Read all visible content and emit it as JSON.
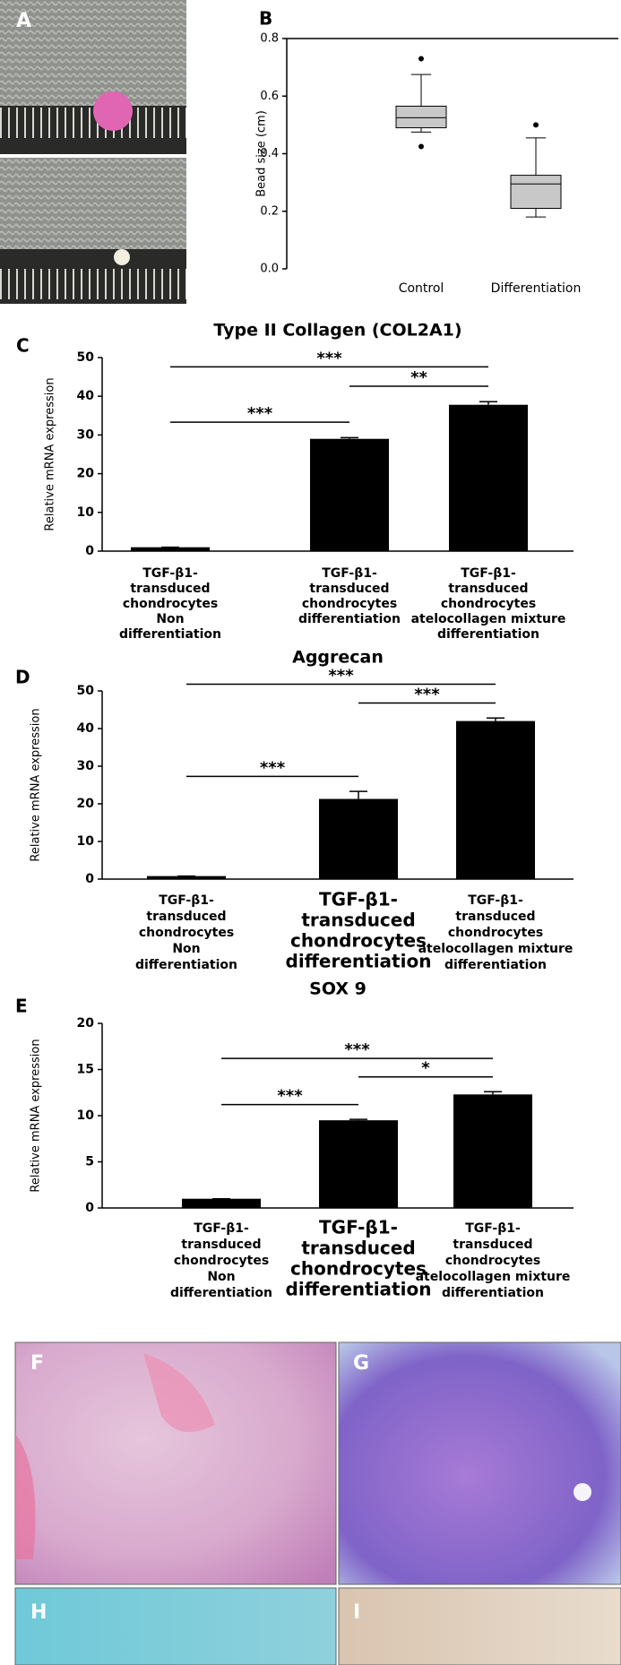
{
  "chart_data": [
    {
      "type": "box",
      "label": "B",
      "ylabel": "Bead size (cm)",
      "categories": [
        "Control",
        "Differentiation"
      ],
      "boxes": [
        {
          "min": 0.475,
          "q1": 0.49,
          "median": 0.525,
          "q3": 0.565,
          "max": 0.675,
          "outliers": [
            0.73,
            0.425
          ]
        },
        {
          "min": 0.18,
          "q1": 0.21,
          "median": 0.295,
          "q3": 0.325,
          "max": 0.455,
          "outliers": [
            0.5
          ]
        }
      ],
      "color": "#c8c8c8",
      "ylim": [
        0,
        0.8
      ],
      "yticks": [
        {
          "value": 0,
          "label": "0.0"
        },
        0.2,
        0.4,
        0.6,
        0.8
      ]
    },
    {
      "type": "bar",
      "label": "C",
      "title": "Type II Collagen (COL2A1)",
      "ylabel": "Relative mRNA expression",
      "categories": [
        [
          "TGF-β1-",
          "transduced",
          "chondrocytes",
          "Non",
          "differentiation"
        ],
        [
          "TGF-β1-",
          "transduced",
          "chondrocytes",
          "differentiation"
        ],
        [
          "TGF-β1-",
          "transduced",
          "chondrocytes",
          "atelocollagen mixture",
          "differentiation"
        ]
      ],
      "values": [
        1,
        29,
        37.8
      ],
      "errors": [
        0,
        0.3,
        0.8
      ],
      "color": "#000000",
      "comparisons": [
        {
          "pair": [
            0,
            2
          ],
          "label": "***"
        },
        {
          "pair": [
            1,
            2
          ],
          "label": "**"
        },
        {
          "pair": [
            0,
            1
          ],
          "label": "***"
        }
      ],
      "ylim": [
        0,
        50
      ],
      "yticks": [
        0,
        10,
        20,
        30,
        40,
        50
      ]
    },
    {
      "type": "bar",
      "label": "D",
      "title": "Aggrecan",
      "ylabel": "Relative mRNA expression",
      "categories": [
        [
          "TGF-β1-",
          "transduced",
          "chondrocytes",
          "Non",
          "differentiation"
        ],
        [
          "TGF-β1-",
          "transduced",
          "chondrocytes",
          "differentiation"
        ],
        [
          "TGF-β1-",
          "transduced",
          "chondrocytes",
          "atelocollagen mixture",
          "differentiation"
        ]
      ],
      "values": [
        0.8,
        21.3,
        42
      ],
      "errors": [
        0,
        2,
        0.8
      ],
      "color": "#000000",
      "comparisons": [
        {
          "pair": [
            0,
            2
          ],
          "label": "***"
        },
        {
          "pair": [
            1,
            2
          ],
          "label": "***"
        },
        {
          "pair": [
            0,
            1
          ],
          "label": "***"
        }
      ],
      "ylim": [
        0,
        50
      ],
      "yticks": [
        0,
        10,
        20,
        30,
        40,
        50
      ]
    },
    {
      "type": "bar",
      "label": "E",
      "title": "SOX 9",
      "ylabel": "Relative mRNA expression",
      "categories": [
        [
          "TGF-β1-",
          "transduced",
          "chondrocytes",
          "Non",
          "differentiation"
        ],
        [
          "TGF-β1-",
          "transduced",
          "chondrocytes",
          "differentiation"
        ],
        [
          "TGF-β1-",
          "transduced",
          "chondrocytes",
          "atelocollagen mixture",
          "differentiation"
        ]
      ],
      "values": [
        1,
        9.5,
        12.3
      ],
      "errors": [
        0,
        0.1,
        0.3
      ],
      "color": "#000000",
      "comparisons": [
        {
          "pair": [
            0,
            2
          ],
          "label": "***"
        },
        {
          "pair": [
            1,
            2
          ],
          "label": "*"
        },
        {
          "pair": [
            0,
            1
          ],
          "label": "***"
        }
      ],
      "ylim": [
        0,
        20
      ],
      "yticks": [
        0,
        5,
        10,
        15,
        20
      ]
    }
  ],
  "photo_panels": [
    "A",
    "F",
    "G",
    "H",
    "I"
  ]
}
